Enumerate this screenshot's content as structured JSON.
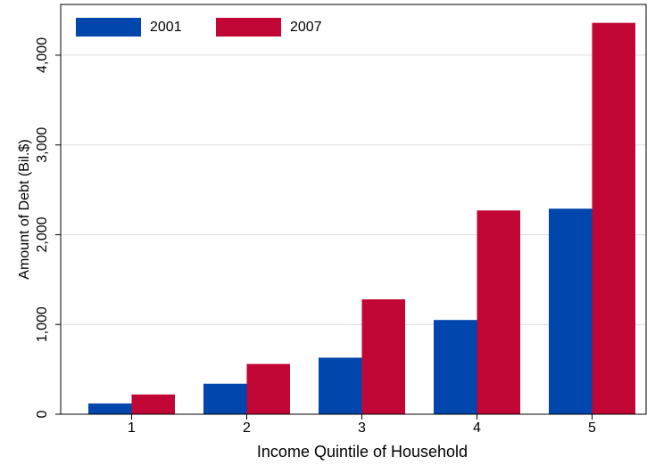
{
  "chart_data": {
    "type": "bar",
    "x_label": "Income Quintile of Household",
    "y_label": "Amount of Debt (Bil.$)",
    "categories": [
      "1",
      "2",
      "3",
      "4",
      "5"
    ],
    "series": [
      {
        "name": "2001",
        "color": "#0046ad",
        "values": [
          120,
          340,
          630,
          1050,
          2290
        ]
      },
      {
        "name": "2007",
        "color": "#c10534",
        "values": [
          220,
          560,
          1280,
          2270,
          4360
        ]
      }
    ],
    "ylim": [
      0,
      4565
    ],
    "yticks": [
      0,
      {
        "value": 1000,
        "label": "1,000"
      },
      {
        "value": 2000,
        "label": "2,000"
      },
      {
        "value": 3000,
        "label": "3,000"
      },
      {
        "value": 4000,
        "label": "4,000"
      }
    ],
    "grid": true,
    "legend": "top-left"
  }
}
